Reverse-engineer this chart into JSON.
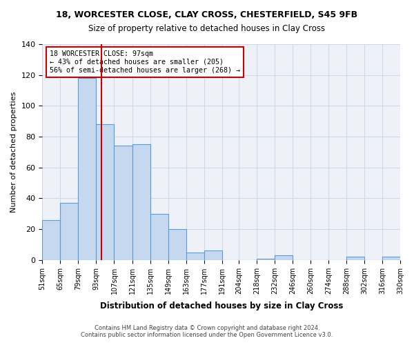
{
  "title1": "18, WORCESTER CLOSE, CLAY CROSS, CHESTERFIELD, S45 9FB",
  "title2": "Size of property relative to detached houses in Clay Cross",
  "xlabel": "Distribution of detached houses by size in Clay Cross",
  "ylabel": "Number of detached properties",
  "footer1": "Contains HM Land Registry data © Crown copyright and database right 2024.",
  "footer2": "Contains public sector information licensed under the Open Government Licence v3.0.",
  "bar_left_edges": [
    51,
    65,
    79,
    93,
    107,
    121,
    135,
    149,
    163,
    177,
    191,
    204,
    218,
    232,
    246,
    260,
    274,
    288,
    302,
    316
  ],
  "bar_heights": [
    26,
    37,
    118,
    88,
    74,
    75,
    30,
    20,
    5,
    6,
    0,
    0,
    1,
    3,
    0,
    0,
    0,
    2,
    0,
    2
  ],
  "bin_width": 14,
  "bar_color": "#c5d8f0",
  "bar_edge_color": "#5b9bd5",
  "grid_color": "#d0d8e8",
  "background_color": "#eef2f8",
  "property_size": 97,
  "property_line_color": "#cc0000",
  "annotation_line1": "18 WORCESTER CLOSE: 97sqm",
  "annotation_line2": "← 43% of detached houses are smaller (205)",
  "annotation_line3": "56% of semi-detached houses are larger (268) →",
  "annotation_box_color": "#ffffff",
  "annotation_border_color": "#cc0000",
  "xlim": [
    51,
    330
  ],
  "ylim": [
    0,
    140
  ],
  "yticks": [
    0,
    20,
    40,
    60,
    80,
    100,
    120,
    140
  ],
  "xtick_positions": [
    51,
    65,
    79,
    93,
    107,
    121,
    135,
    149,
    163,
    177,
    191,
    204,
    218,
    232,
    246,
    260,
    274,
    288,
    302,
    316,
    330
  ],
  "xtick_labels": [
    "51sqm",
    "65sqm",
    "79sqm",
    "93sqm",
    "107sqm",
    "121sqm",
    "135sqm",
    "149sqm",
    "163sqm",
    "177sqm",
    "191sqm",
    "204sqm",
    "218sqm",
    "232sqm",
    "246sqm",
    "260sqm",
    "274sqm",
    "288sqm",
    "302sqm",
    "316sqm",
    "330sqm"
  ]
}
